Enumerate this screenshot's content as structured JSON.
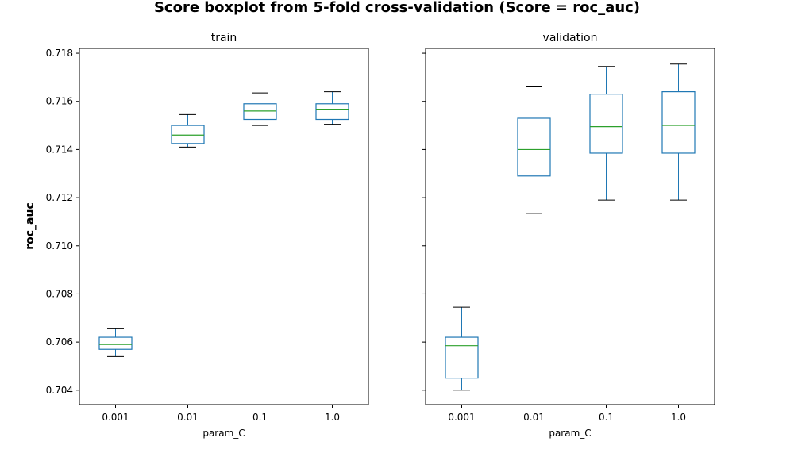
{
  "chart_data": {
    "type": "boxplot",
    "title": "Score boxplot from 5-fold cross-validation (Score = roc_auc)",
    "ylabel": "roc_auc",
    "ylim": [
      0.7034,
      0.7182
    ],
    "yticks": [
      0.704,
      0.706,
      0.708,
      0.71,
      0.712,
      0.714,
      0.716,
      0.718
    ],
    "ytick_labels": [
      "0.704",
      "0.706",
      "0.708",
      "0.710",
      "0.712",
      "0.714",
      "0.716",
      "0.718"
    ],
    "shared_y": true,
    "colors": {
      "box": "#1f77b4",
      "median": "#2ca02c",
      "whisker": "#1f77b4",
      "cap": "#000000"
    },
    "panels": [
      {
        "title": "train",
        "xlabel": "param_C",
        "categories": [
          "0.001",
          "0.01",
          "0.1",
          "1.0"
        ],
        "boxes": [
          {
            "whislo": 0.7054,
            "q1": 0.7057,
            "med": 0.7059,
            "q3": 0.7062,
            "whishi": 0.70655
          },
          {
            "whislo": 0.7141,
            "q1": 0.71425,
            "med": 0.7146,
            "q3": 0.715,
            "whishi": 0.71545
          },
          {
            "whislo": 0.715,
            "q1": 0.71525,
            "med": 0.7156,
            "q3": 0.7159,
            "whishi": 0.71635
          },
          {
            "whislo": 0.71505,
            "q1": 0.71525,
            "med": 0.71565,
            "q3": 0.7159,
            "whishi": 0.7164
          }
        ]
      },
      {
        "title": "validation",
        "xlabel": "param_C",
        "categories": [
          "0.001",
          "0.01",
          "0.1",
          "1.0"
        ],
        "boxes": [
          {
            "whislo": 0.704,
            "q1": 0.7045,
            "med": 0.70585,
            "q3": 0.7062,
            "whishi": 0.70745
          },
          {
            "whislo": 0.71135,
            "q1": 0.7129,
            "med": 0.714,
            "q3": 0.7153,
            "whishi": 0.7166
          },
          {
            "whislo": 0.7119,
            "q1": 0.71385,
            "med": 0.71495,
            "q3": 0.7163,
            "whishi": 0.71745
          },
          {
            "whislo": 0.7119,
            "q1": 0.71385,
            "med": 0.715,
            "q3": 0.7164,
            "whishi": 0.71755
          }
        ]
      }
    ]
  }
}
